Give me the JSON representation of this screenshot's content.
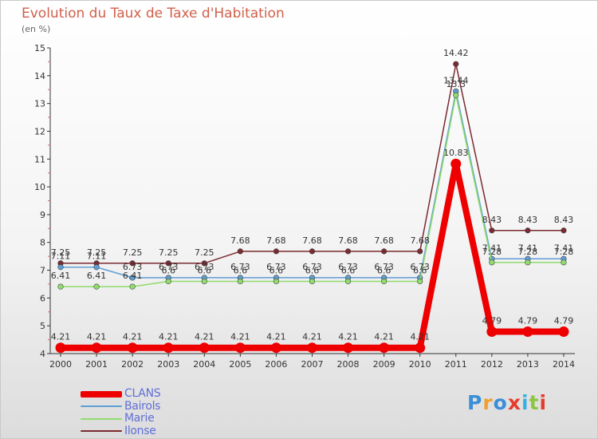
{
  "header": {
    "title": "Evolution du Taux de Taxe d'Habitation",
    "subtitle": "(en %)"
  },
  "logo": {
    "text": "Proxiti",
    "letter_colors": [
      "#3a8fd8",
      "#f0a030",
      "#3a8fd8",
      "#e53c2c",
      "#3ab0e0",
      "#8cc63f",
      "#e53c2c"
    ]
  },
  "chart_data": {
    "type": "line",
    "title": "Evolution du Taux de Taxe d'Habitation",
    "ylabel": "(en %)",
    "xlabel": "",
    "x": [
      "2000",
      "2001",
      "2002",
      "2003",
      "2004",
      "2005",
      "2006",
      "2007",
      "2008",
      "2009",
      "2010",
      "2011",
      "2012",
      "2013",
      "2014"
    ],
    "ylim": [
      4,
      15
    ],
    "yticks": [
      "4",
      "5",
      "6",
      "7",
      "8",
      "9",
      "10",
      "11",
      "12",
      "13",
      "14",
      "15"
    ],
    "grid": false,
    "legend_position": "bottom-left",
    "series": [
      {
        "name": "CLANS",
        "color": "#ee0000",
        "values": [
          4.21,
          4.21,
          4.21,
          4.21,
          4.21,
          4.21,
          4.21,
          4.21,
          4.21,
          4.21,
          4.21,
          10.83,
          4.79,
          4.79,
          4.79
        ],
        "labels": [
          "4.21",
          "4.21",
          "4.21",
          "4.21",
          "4.21",
          "4.21",
          "4.21",
          "4.21",
          "4.21",
          "4.21",
          "4.21",
          "10.83",
          "4.79",
          "4.79",
          "4.79"
        ]
      },
      {
        "name": "Bairols",
        "color": "#5f9ed4",
        "values": [
          7.11,
          7.11,
          6.73,
          6.73,
          6.73,
          6.73,
          6.73,
          6.73,
          6.73,
          6.73,
          6.73,
          13.44,
          7.41,
          7.41,
          7.41
        ],
        "labels": [
          "7.11",
          "7.11",
          "6.73",
          "6.73",
          "6.73",
          "6.73",
          "6.73",
          "6.73",
          "6.73",
          "6.73",
          "6.73",
          "13.44",
          "7.41",
          "7.41",
          "7.41"
        ]
      },
      {
        "name": "Marie",
        "color": "#90dc6c",
        "values": [
          6.41,
          6.41,
          6.41,
          6.6,
          6.6,
          6.6,
          6.6,
          6.6,
          6.6,
          6.6,
          6.6,
          13.3,
          7.28,
          7.28,
          7.28
        ],
        "labels": [
          "6.41",
          "6.41",
          "6.41",
          "6.6",
          "6.6",
          "6.6",
          "6.6",
          "6.6",
          "6.6",
          "6.6",
          "6.6",
          "13.3",
          "7.28",
          "7.28",
          "7.28"
        ]
      },
      {
        "name": "Ilonse",
        "color": "#7a2a30",
        "values": [
          7.25,
          7.25,
          7.25,
          7.25,
          7.25,
          7.68,
          7.68,
          7.68,
          7.68,
          7.68,
          7.68,
          14.42,
          8.43,
          8.43,
          8.43
        ],
        "labels": [
          "7.25",
          "7.25",
          "7.25",
          "7.25",
          "7.25",
          "7.68",
          "7.68",
          "7.68",
          "7.68",
          "7.68",
          "7.68",
          "14.42",
          "8.43",
          "8.43",
          "8.43"
        ]
      }
    ]
  }
}
